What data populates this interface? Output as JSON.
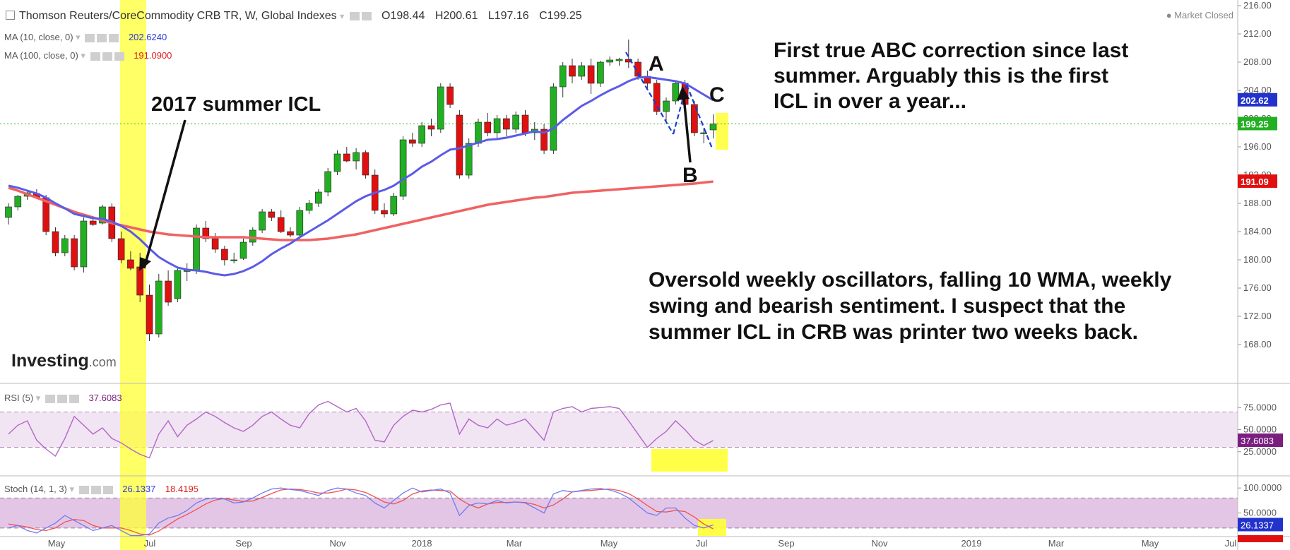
{
  "header": {
    "title": "Thomson Reuters/CoreCommodity CRB TR, W, Global Indexes",
    "open": "O198.44",
    "high": "H200.61",
    "low": "L197.16",
    "close": "C199.25",
    "status": "Market Closed"
  },
  "indicators": {
    "ma10_label": "MA (10, close, 0)",
    "ma10_value": "202.6240",
    "ma100_label": "MA (100, close, 0)",
    "ma100_value": "191.0900",
    "rsi_label": "RSI (5)",
    "rsi_value": "37.6083",
    "stoch_label": "Stoch (14, 1, 3)",
    "stoch_k_value": "26.1337",
    "stoch_d_value": "18.4195"
  },
  "annotations": {
    "icl_2017": "2017 summer ICL",
    "abc_note": "First true ABC correction since last\nsummer. Arguably this is the first\nICL in over a year...",
    "oversold_note": "Oversold weekly oscillators, falling 10 WMA, weekly\nswing and bearish sentiment. I suspect that the\nsummer ICL in CRB was printer two weeks back.",
    "wave_a": "A",
    "wave_b": "B",
    "wave_c": "C"
  },
  "logo": {
    "brand": "Investing",
    "suffix": ".com"
  },
  "colors": {
    "up": "#22b022",
    "down": "#e01010",
    "ma10": "#5b5be8",
    "ma100": "#f06262",
    "rsi": "#b265c8",
    "stoch_k": "#6f7bf0",
    "stoch_d": "#f05050",
    "highlight": "#ffff33",
    "price_line": "#24b324",
    "trend": "#1a3ccc"
  },
  "chart_data": [
    {
      "type": "candlestick",
      "title": "Thomson Reuters/CoreCommodity CRB TR, W, Global Indexes",
      "ylim": [
        166,
        216
      ],
      "y_ticks": [
        "216.00",
        "212.00",
        "208.00",
        "204.00",
        "200.00",
        "196.00",
        "192.00",
        "188.00",
        "184.00",
        "180.00",
        "176.00",
        "172.00",
        "168.00"
      ],
      "x_ticks": [
        "May",
        "Jul",
        "Sep",
        "Nov",
        "2018",
        "Mar",
        "May",
        "Jul",
        "Sep",
        "Nov",
        "2019",
        "Mar",
        "May",
        "Jul"
      ],
      "price_labels": {
        "ma10": "202.62",
        "last": "199.25",
        "ma100": "191.09"
      },
      "candles": [
        [
          186,
          188,
          185,
          187.5
        ],
        [
          187.5,
          189.2,
          187,
          189
        ],
        [
          189,
          189.7,
          188.5,
          189.5
        ],
        [
          189.4,
          190,
          188.6,
          188.8
        ],
        [
          188.8,
          189.2,
          183.5,
          184
        ],
        [
          184,
          184.6,
          180.5,
          181
        ],
        [
          181,
          183.5,
          180.5,
          183
        ],
        [
          183,
          183.5,
          178.5,
          179
        ],
        [
          179,
          186,
          178.2,
          185.5
        ],
        [
          185.5,
          186.2,
          184.8,
          185
        ],
        [
          185.2,
          187.8,
          185,
          187.5
        ],
        [
          187.5,
          188,
          182.5,
          183
        ],
        [
          183,
          184,
          179.5,
          180
        ],
        [
          180,
          181.2,
          178.5,
          178.8
        ],
        [
          179,
          181,
          174,
          175
        ],
        [
          175,
          176.5,
          168.5,
          169.5
        ],
        [
          169.5,
          178,
          169,
          177
        ],
        [
          177,
          178.5,
          173.5,
          174
        ],
        [
          174.5,
          179,
          174,
          178.5
        ],
        [
          178.5,
          179.5,
          177,
          178.5
        ],
        [
          178.5,
          185,
          178,
          184.5
        ],
        [
          184.5,
          185.5,
          182.5,
          183
        ],
        [
          183,
          183.8,
          181,
          181.5
        ],
        [
          181.5,
          182,
          179.2,
          180
        ],
        [
          180,
          181,
          179.5,
          180
        ],
        [
          180.2,
          183,
          180,
          182.5
        ],
        [
          182.5,
          184.6,
          182,
          184.2
        ],
        [
          184.2,
          187.2,
          183.8,
          186.8
        ],
        [
          186.8,
          187.2,
          185.5,
          186
        ],
        [
          186,
          187,
          183.8,
          184
        ],
        [
          184,
          184.6,
          183.2,
          183.5
        ],
        [
          183.5,
          187.5,
          183,
          187
        ],
        [
          187,
          188.5,
          186.5,
          188
        ],
        [
          188,
          190,
          187.5,
          189.6
        ],
        [
          189.6,
          193,
          189,
          192.5
        ],
        [
          192.5,
          195.5,
          192,
          195
        ],
        [
          195,
          196,
          193.8,
          194
        ],
        [
          194,
          195.8,
          192.8,
          195.2
        ],
        [
          195.2,
          195.5,
          191.5,
          192
        ],
        [
          192,
          192.8,
          186.5,
          187
        ],
        [
          187,
          188,
          186,
          186.5
        ],
        [
          186.5,
          189.5,
          186.2,
          189
        ],
        [
          189,
          197.5,
          188.5,
          197
        ],
        [
          197,
          198,
          196,
          196.5
        ],
        [
          196.5,
          199.5,
          196,
          199
        ],
        [
          199,
          200,
          197.5,
          198.5
        ],
        [
          198.5,
          205,
          198,
          204.5
        ],
        [
          204.5,
          205,
          201.5,
          202
        ],
        [
          200.5,
          201.2,
          191.5,
          192
        ],
        [
          192,
          197.2,
          191.5,
          196.5
        ],
        [
          196.5,
          200,
          196,
          199.5
        ],
        [
          199.5,
          200.8,
          197.5,
          198
        ],
        [
          198,
          200.5,
          197.2,
          200
        ],
        [
          200,
          200.5,
          197.5,
          198.5
        ],
        [
          198.5,
          201,
          198,
          200.5
        ],
        [
          200.5,
          201.2,
          197.5,
          198
        ],
        [
          198,
          199.5,
          197,
          198.5
        ],
        [
          198.5,
          199.2,
          195,
          195.5
        ],
        [
          195.5,
          205,
          195,
          204.5
        ],
        [
          204.5,
          208,
          203,
          207.5
        ],
        [
          207.5,
          208.5,
          205,
          206
        ],
        [
          206,
          208,
          205.5,
          207.5
        ],
        [
          207.5,
          208.5,
          203.5,
          205
        ],
        [
          205,
          208.2,
          204.5,
          208
        ],
        [
          208,
          208.8,
          207.5,
          208.3
        ],
        [
          208.2,
          208.6,
          207.5,
          208.4
        ],
        [
          208.4,
          211.2,
          207.2,
          208
        ],
        [
          208,
          208.5,
          205.5,
          206
        ],
        [
          206,
          206.8,
          204.2,
          205
        ],
        [
          205,
          205.5,
          200.5,
          201
        ],
        [
          201,
          203,
          199.5,
          202.5
        ],
        [
          202.5,
          205.2,
          202,
          205
        ],
        [
          205,
          205.5,
          201.5,
          202
        ],
        [
          202,
          202.5,
          197.5,
          198
        ],
        [
          198,
          198.6,
          196.5,
          198
        ],
        [
          198.4,
          200.6,
          197.2,
          199.25
        ]
      ],
      "ma10": [
        190.5,
        190.2,
        189.8,
        189.4,
        188.8,
        188.0,
        187.3,
        186.5,
        186.2,
        185.9,
        185.8,
        185.4,
        184.8,
        184.0,
        182.9,
        181.6,
        180.4,
        179.6,
        178.9,
        178.6,
        178.5,
        178.3,
        178.0,
        177.8,
        178.0,
        178.4,
        179.0,
        179.8,
        180.8,
        181.6,
        182.3,
        183.2,
        184.0,
        184.8,
        185.6,
        186.5,
        187.4,
        188.3,
        189.0,
        189.5,
        189.9,
        190.5,
        191.4,
        192.2,
        193.2,
        193.9,
        194.8,
        195.6,
        195.8,
        196.2,
        196.6,
        197.0,
        197.1,
        197.3,
        197.6,
        197.9,
        198.2,
        198.0,
        198.6,
        199.8,
        200.8,
        201.8,
        202.5,
        203.3,
        204.0,
        204.6,
        205.3,
        205.8,
        205.9,
        205.7,
        205.5,
        205.3,
        205.0,
        204.2,
        203.4,
        202.62
      ],
      "ma100": [
        190.2,
        189.8,
        189.3,
        188.8,
        188.3,
        187.8,
        187.3,
        186.8,
        186.4,
        186.0,
        185.6,
        185.2,
        184.9,
        184.6,
        184.3,
        184.0,
        183.8,
        183.6,
        183.5,
        183.4,
        183.3,
        183.2,
        183.2,
        183.2,
        183.2,
        183.2,
        183.1,
        183.0,
        182.9,
        182.8,
        182.8,
        182.8,
        182.8,
        182.9,
        183.0,
        183.2,
        183.4,
        183.6,
        183.9,
        184.2,
        184.5,
        184.8,
        185.1,
        185.4,
        185.7,
        186.0,
        186.3,
        186.6,
        186.9,
        187.2,
        187.5,
        187.8,
        188.0,
        188.2,
        188.4,
        188.6,
        188.8,
        188.9,
        189.1,
        189.3,
        189.5,
        189.6,
        189.7,
        189.8,
        189.9,
        190.0,
        190.1,
        190.2,
        190.3,
        190.4,
        190.5,
        190.6,
        190.7,
        190.8,
        190.95,
        191.09
      ]
    },
    {
      "type": "line",
      "title": "RSI (5)",
      "ylim": [
        0,
        100
      ],
      "y_ticks": [
        "75.0000",
        "50.0000",
        "25.0000"
      ],
      "band": [
        30,
        70
      ],
      "value_label": "37.6083",
      "series": [
        {
          "name": "RSI (5)",
          "values": [
            45,
            55,
            60,
            38,
            28,
            20,
            40,
            65,
            55,
            45,
            52,
            40,
            35,
            28,
            22,
            18,
            45,
            60,
            42,
            55,
            62,
            70,
            65,
            58,
            52,
            48,
            55,
            65,
            70,
            62,
            55,
            52,
            68,
            78,
            82,
            76,
            70,
            74,
            60,
            38,
            36,
            55,
            65,
            72,
            70,
            73,
            78,
            80,
            45,
            62,
            55,
            52,
            62,
            55,
            58,
            62,
            50,
            38,
            70,
            74,
            76,
            70,
            74,
            75,
            76,
            74,
            60,
            45,
            30,
            40,
            48,
            60,
            50,
            38,
            32,
            37.6
          ]
        }
      ]
    },
    {
      "type": "line",
      "title": "Stoch (14, 1, 3)",
      "ylim": [
        0,
        120
      ],
      "y_ticks": [
        "100.0000",
        "50.0000"
      ],
      "band": [
        20,
        80
      ],
      "value_labels": [
        "26.1337",
        "18.4195"
      ],
      "series": [
        {
          "name": "%K",
          "values": [
            20,
            25,
            15,
            10,
            20,
            30,
            45,
            35,
            25,
            15,
            20,
            25,
            15,
            5,
            5,
            8,
            30,
            40,
            45,
            55,
            70,
            78,
            80,
            78,
            70,
            72,
            80,
            90,
            98,
            100,
            97,
            95,
            90,
            85,
            95,
            100,
            98,
            90,
            85,
            70,
            60,
            75,
            90,
            100,
            92,
            95,
            98,
            90,
            45,
            65,
            70,
            68,
            75,
            70,
            72,
            70,
            60,
            50,
            88,
            95,
            92,
            95,
            98,
            99,
            96,
            90,
            80,
            65,
            50,
            45,
            60,
            60,
            40,
            25,
            20,
            26.1
          ]
        },
        {
          "name": "%D",
          "values": [
            28,
            25,
            22,
            17,
            15,
            20,
            32,
            37,
            35,
            25,
            20,
            20,
            20,
            15,
            8,
            6,
            14,
            26,
            38,
            47,
            57,
            68,
            76,
            79,
            76,
            73,
            74,
            81,
            89,
            96,
            98,
            97,
            94,
            90,
            90,
            93,
            98,
            96,
            91,
            82,
            72,
            68,
            75,
            88,
            94,
            96,
            95,
            94,
            78,
            67,
            60,
            68,
            71,
            71,
            72,
            71,
            67,
            60,
            66,
            78,
            92,
            94,
            95,
            97,
            98,
            95,
            89,
            78,
            65,
            53,
            52,
            55,
            53,
            42,
            28,
            18.4
          ]
        }
      ]
    }
  ]
}
